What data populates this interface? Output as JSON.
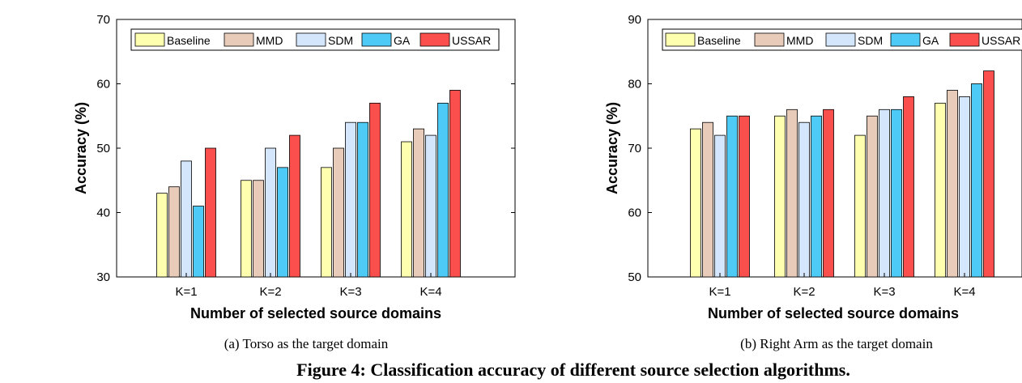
{
  "figure_caption": "Figure 4: Classification accuracy of different source selection algorithms.",
  "chart_data": [
    {
      "type": "bar",
      "caption": "(a)  Torso as the target domain",
      "xlabel": "Number of selected source domains",
      "ylabel": "Accuracy (%)",
      "categories": [
        "K=1",
        "K=2",
        "K=3",
        "K=4"
      ],
      "ylim": [
        30,
        70
      ],
      "yticks": [
        30,
        40,
        50,
        60,
        70
      ],
      "legend_position": "top",
      "grid": false,
      "series": [
        {
          "name": "Baseline",
          "color": "#ffffb0",
          "values": [
            43,
            45,
            47,
            51
          ]
        },
        {
          "name": "MMD",
          "color": "#e8cbb8",
          "values": [
            44,
            45,
            50,
            53
          ]
        },
        {
          "name": "SDM",
          "color": "#d4e6fb",
          "values": [
            48,
            50,
            54,
            52
          ]
        },
        {
          "name": "GA",
          "color": "#4dcbf6",
          "values": [
            41,
            47,
            54,
            57
          ]
        },
        {
          "name": "USSAR",
          "color": "#fa4f4d",
          "values": [
            50,
            52,
            57,
            59
          ]
        }
      ]
    },
    {
      "type": "bar",
      "caption": "(b)  Right Arm as the target domain",
      "xlabel": "Number of selected source domains",
      "ylabel": "Accuracy (%)",
      "categories": [
        "K=1",
        "K=2",
        "K=3",
        "K=4"
      ],
      "ylim": [
        50,
        90
      ],
      "yticks": [
        50,
        60,
        70,
        80,
        90
      ],
      "legend_position": "top",
      "grid": false,
      "series": [
        {
          "name": "Baseline",
          "color": "#ffffb0",
          "values": [
            73,
            75,
            72,
            77
          ]
        },
        {
          "name": "MMD",
          "color": "#e8cbb8",
          "values": [
            74,
            76,
            75,
            79
          ]
        },
        {
          "name": "SDM",
          "color": "#d4e6fb",
          "values": [
            72,
            74,
            76,
            78
          ]
        },
        {
          "name": "GA",
          "color": "#4dcbf6",
          "values": [
            75,
            75,
            76,
            80
          ]
        },
        {
          "name": "USSAR",
          "color": "#fa4f4d",
          "values": [
            75,
            76,
            78,
            82
          ]
        }
      ]
    }
  ]
}
